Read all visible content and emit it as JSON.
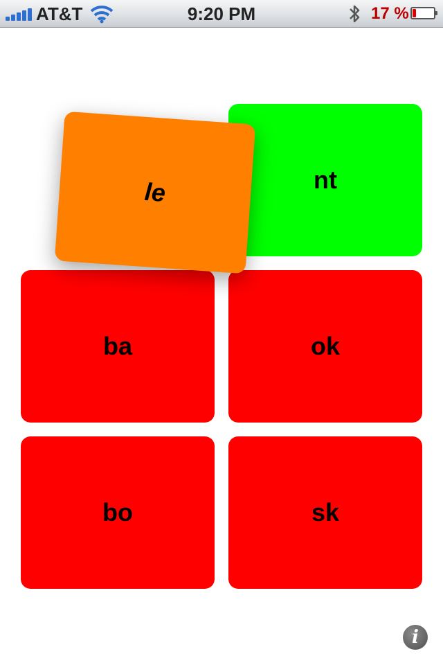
{
  "status_bar": {
    "carrier": "AT&T",
    "time": "9:20 PM",
    "battery_percent_text": "17 %",
    "battery_level": 0.17,
    "signal_icon": "signal-bars-icon",
    "wifi_icon": "wifi-icon",
    "bluetooth_icon": "bluetooth-icon",
    "battery_icon": "battery-icon"
  },
  "tiles": [
    {
      "id": "nt",
      "label": "nt",
      "color": "#00ff00"
    },
    {
      "id": "le",
      "label": "le",
      "color": "#ff8000"
    },
    {
      "id": "ba",
      "label": "ba",
      "color": "#ff0000"
    },
    {
      "id": "ok",
      "label": "ok",
      "color": "#ff0000"
    },
    {
      "id": "bo",
      "label": "bo",
      "color": "#ff0000"
    },
    {
      "id": "sk",
      "label": "sk",
      "color": "#ff0000"
    }
  ],
  "info_button": {
    "glyph": "i",
    "icon": "info-icon"
  }
}
